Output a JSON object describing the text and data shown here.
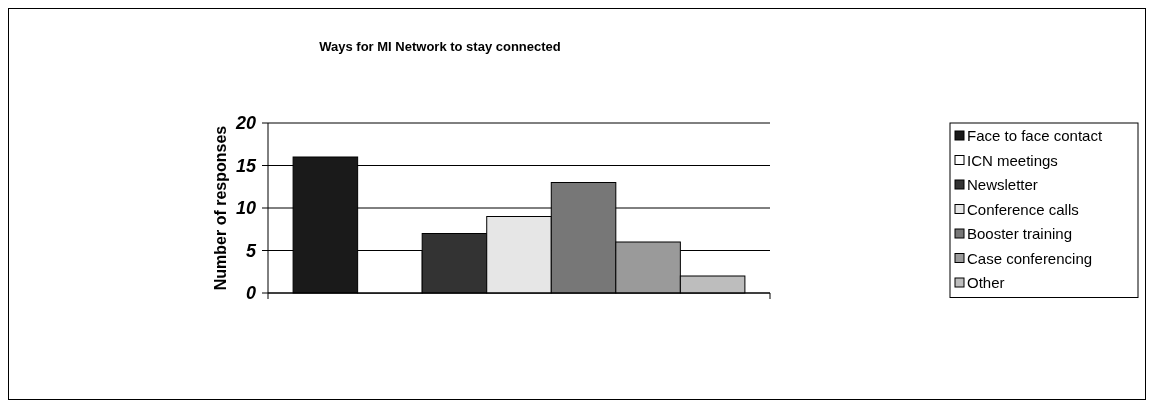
{
  "chart_data": {
    "type": "bar",
    "title": "Ways for MI Network to stay connected",
    "ylabel": "Number of responses",
    "categories": [
      null
    ],
    "series": [
      {
        "name": "Face to face contact",
        "color": "#1a1a1a",
        "values": [
          16
        ]
      },
      {
        "name": "ICN meetings",
        "color": "#ffffff",
        "values": [
          5
        ]
      },
      {
        "name": "Newsletter",
        "color": "#333333",
        "values": [
          7
        ]
      },
      {
        "name": "Conference calls",
        "color": "#e6e6e6",
        "values": [
          9
        ]
      },
      {
        "name": "Booster training",
        "color": "#777777",
        "values": [
          13
        ]
      },
      {
        "name": "Case conferencing",
        "color": "#9a9a9a",
        "values": [
          6
        ]
      },
      {
        "name": "Other",
        "color": "#bdbdbd",
        "values": [
          2
        ]
      }
    ],
    "ylim": [
      0,
      20
    ],
    "yticks": [
      0,
      5,
      10,
      15,
      20
    ],
    "grid": "y",
    "legend": "right"
  }
}
